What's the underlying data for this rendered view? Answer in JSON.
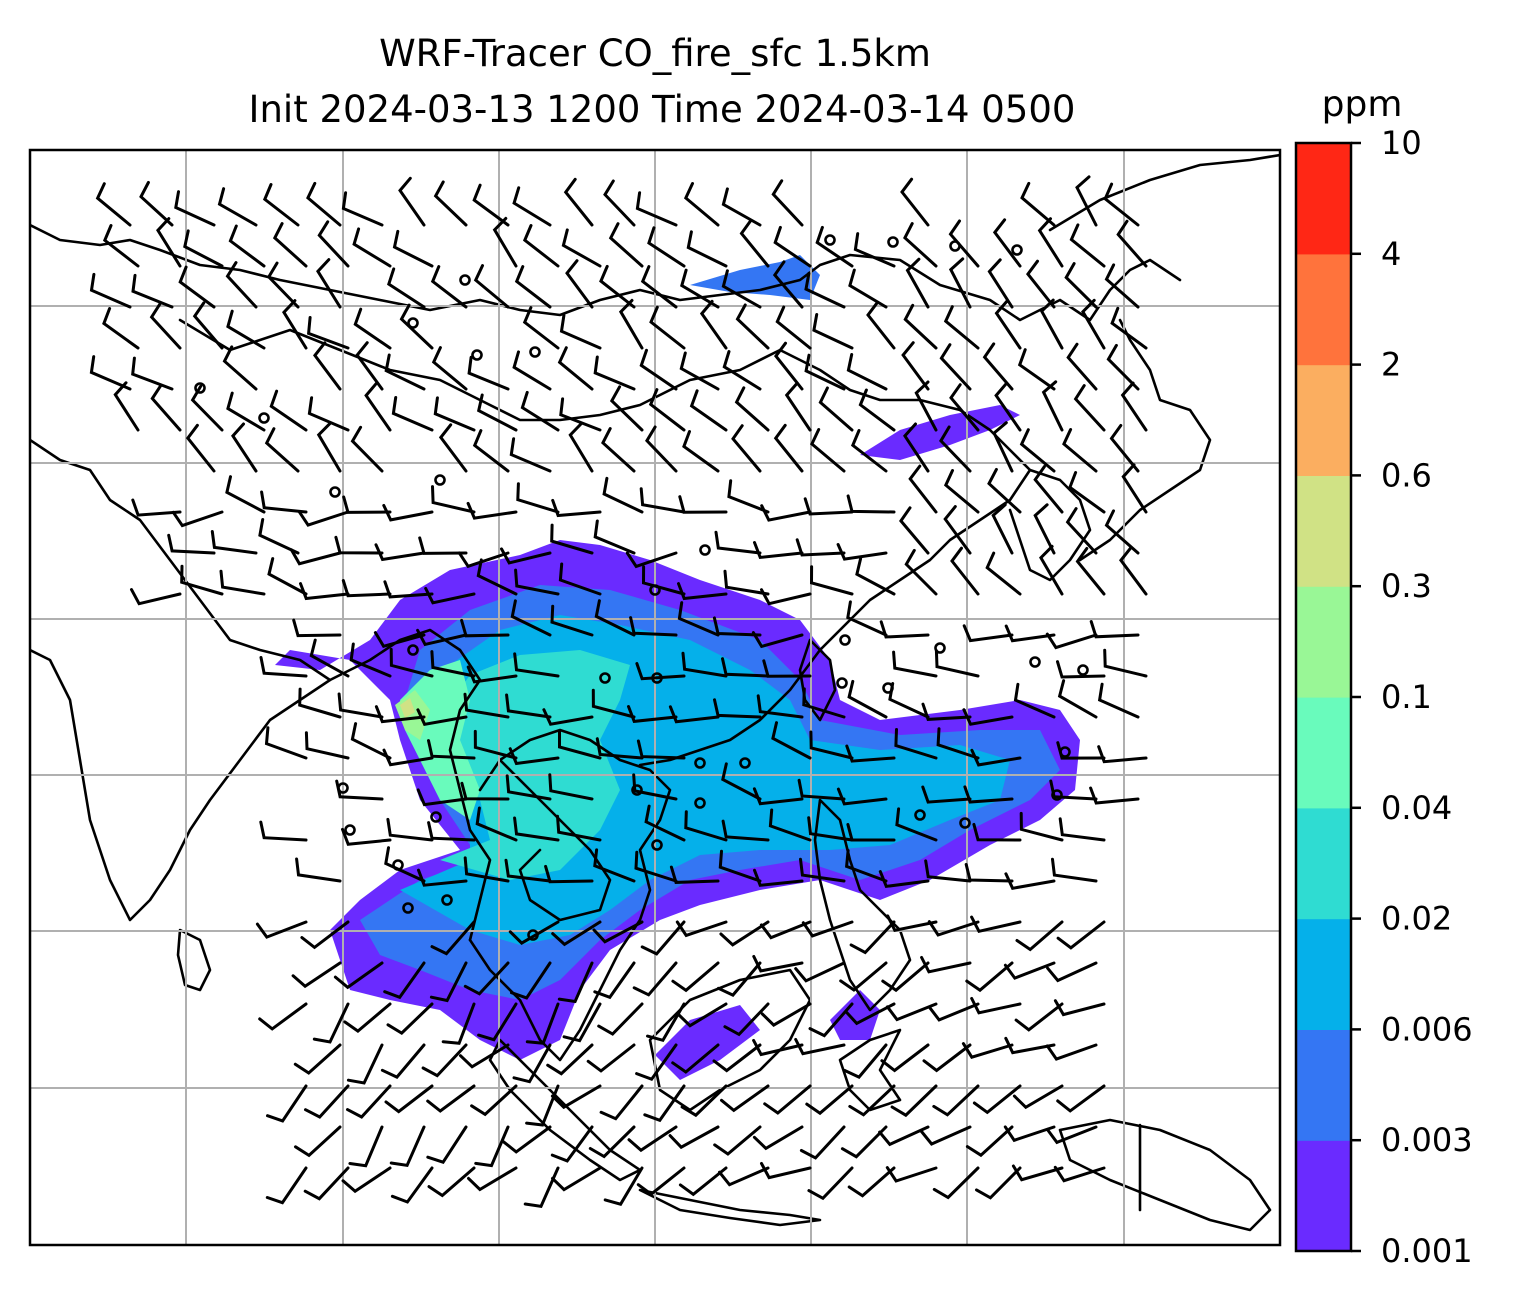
{
  "chart_data": {
    "type": "heatmap",
    "title": "WRF-Tracer CO_fire_sfc 1.5km",
    "subtitle": "Init 2024-03-13 1200 Time 2024-03-14 0500",
    "colorbar": {
      "unit": "ppm",
      "levels": [
        "0.001",
        "0.003",
        "0.006",
        "0.02",
        "0.04",
        "0.1",
        "0.3",
        "0.6",
        "2",
        "4",
        "10"
      ],
      "colors": [
        "#6a2bff",
        "#3476f3",
        "#05b0ea",
        "#2fdcd2",
        "#69fbbc",
        "#99f796",
        "#d0e285",
        "#fbae60",
        "#ff733c",
        "#ff2715"
      ]
    },
    "grid": true,
    "features": [
      "concentration shading",
      "wind barbs",
      "coastlines",
      "country borders"
    ]
  }
}
